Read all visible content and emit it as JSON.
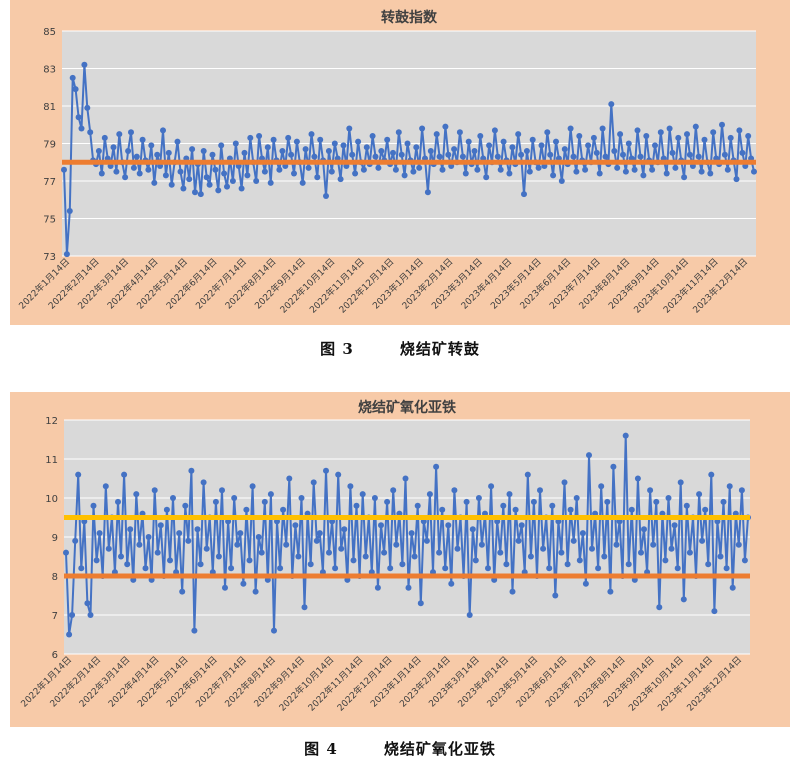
{
  "chart_data": [
    {
      "type": "line",
      "title": "转鼓指数",
      "xlabel": "",
      "ylabel": "",
      "ylim": [
        73,
        85
      ],
      "yticks": [
        73,
        75,
        77,
        79,
        81,
        83,
        85
      ],
      "xtick_labels": [
        "2022年1月14日",
        "2022年2月14日",
        "2022年3月14日",
        "2022年4月14日",
        "2022年5月14日",
        "2022年6月14日",
        "2022年7月14日",
        "2022年8月14日",
        "2022年9月14日",
        "2022年10月14日",
        "2022年11月14日",
        "2022年12月14日",
        "2023年1月14日",
        "2023年2月14日",
        "2023年3月14日",
        "2023年4月14日",
        "2023年5月14日",
        "2023年6月14日",
        "2023年7月14日",
        "2023年8月14日",
        "2023年9月14日",
        "2023年10月14日",
        "2023年11月14日",
        "2023年12月14日"
      ],
      "series_color": "#4472c4",
      "reference_lines": [
        {
          "value": 78.0,
          "color": "#ed7d31"
        }
      ],
      "series": [
        {
          "values": [
            77.6,
            73.1,
            75.4,
            82.5,
            81.9,
            80.4,
            79.8,
            83.2,
            80.9,
            79.6,
            78.1,
            77.9,
            78.6,
            77.4,
            79.3,
            78.2,
            77.8,
            78.8,
            77.5,
            79.5,
            78.0,
            77.2,
            78.6,
            79.6,
            77.7,
            78.3,
            77.4,
            79.2,
            78.1,
            77.6,
            78.9,
            76.9,
            78.4,
            77.8,
            79.7,
            77.3,
            78.5,
            76.8,
            78.0,
            79.1,
            77.5,
            76.6,
            78.2,
            77.1,
            78.7,
            76.4,
            77.9,
            76.3,
            78.6,
            77.2,
            76.8,
            78.4,
            77.6,
            76.5,
            78.9,
            77.4,
            76.7,
            78.2,
            77.0,
            79.0,
            77.8,
            76.6,
            78.5,
            77.3,
            79.3,
            78.0,
            77.0,
            79.4,
            78.2,
            77.5,
            78.8,
            76.9,
            79.2,
            78.1,
            77.6,
            78.6,
            77.8,
            79.3,
            78.4,
            77.4,
            79.1,
            78.0,
            76.9,
            78.7,
            77.7,
            79.5,
            78.3,
            77.2,
            79.2,
            78.1,
            76.2,
            78.6,
            77.5,
            79.0,
            78.2,
            77.1,
            78.9,
            77.8,
            79.8,
            78.4,
            77.4,
            79.1,
            78.0,
            77.6,
            78.8,
            77.9,
            79.4,
            78.3,
            77.7,
            78.6,
            78.1,
            79.2,
            77.9,
            78.5,
            77.6,
            79.6,
            78.4,
            77.3,
            79.0,
            78.1,
            77.5,
            78.8,
            77.7,
            79.8,
            78.2,
            76.4,
            78.6,
            77.9,
            79.5,
            78.3,
            77.6,
            79.9,
            78.4,
            77.8,
            78.7,
            78.0,
            79.6,
            78.3,
            77.4,
            79.1,
            77.9,
            78.6,
            77.6,
            79.4,
            78.2,
            77.2,
            78.9,
            78.0,
            79.7,
            78.3,
            77.6,
            79.1,
            78.1,
            77.4,
            78.8,
            77.9,
            79.5,
            78.4,
            76.3,
            78.6,
            77.5,
            79.2,
            78.0,
            77.7,
            78.9,
            77.8,
            79.6,
            78.4,
            77.3,
            79.1,
            78.2,
            77.0,
            78.7,
            77.9,
            79.8,
            78.3,
            77.5,
            79.4,
            78.1,
            77.6,
            78.9,
            78.0,
            79.3,
            78.5,
            77.4,
            79.8,
            78.3,
            77.9,
            81.1,
            78.6,
            77.7,
            79.5,
            78.4,
            77.5,
            79.0,
            78.2,
            77.6,
            79.7,
            78.3,
            77.3,
            79.4,
            78.1,
            77.6,
            78.9,
            78.0,
            79.6,
            78.2,
            77.4,
            79.8,
            78.5,
            77.7,
            79.3,
            78.1,
            77.2,
            79.5,
            78.4,
            77.8,
            79.9,
            78.3,
            77.5,
            79.2,
            78.0,
            77.4,
            79.6,
            78.2,
            77.9,
            80.0,
            78.4,
            77.6,
            79.3,
            78.1,
            77.1,
            79.7,
            78.5,
            77.8,
            79.4,
            78.2,
            77.5
          ]
        }
      ]
    },
    {
      "type": "line",
      "title": "烧结矿氧化亚铁",
      "xlabel": "",
      "ylabel": "",
      "ylim": [
        6,
        12
      ],
      "yticks": [
        6,
        7,
        8,
        9,
        10,
        11,
        12
      ],
      "xtick_labels": [
        "2022年1月14日",
        "2022年2月14日",
        "2022年3月14日",
        "2022年4月14日",
        "2022年5月14日",
        "2022年6月14日",
        "2022年7月14日",
        "2022年8月14日",
        "2022年9月14日",
        "2022年10月14日",
        "2022年11月14日",
        "2022年12月14日",
        "2023年1月14日",
        "2023年2月14日",
        "2023年3月14日",
        "2023年4月14日",
        "2023年5月14日",
        "2023年6月14日",
        "2023年7月14日",
        "2023年8月14日",
        "2023年9月14日",
        "2023年10月14日",
        "2023年11月14日",
        "2023年12月14日"
      ],
      "series_color": "#4472c4",
      "reference_lines": [
        {
          "value": 9.5,
          "color": "#ffc000"
        },
        {
          "value": 8.0,
          "color": "#ed7d31"
        }
      ],
      "series": [
        {
          "values": [
            8.6,
            6.5,
            7.0,
            8.9,
            10.6,
            8.2,
            9.4,
            7.3,
            7.0,
            9.8,
            8.4,
            9.1,
            8.0,
            10.3,
            8.7,
            9.5,
            8.1,
            9.9,
            8.5,
            10.6,
            8.3,
            9.2,
            7.9,
            10.1,
            8.8,
            9.6,
            8.2,
            9.0,
            7.9,
            10.2,
            8.6,
            9.3,
            8.0,
            9.7,
            8.4,
            10.0,
            8.1,
            9.1,
            7.6,
            9.8,
            8.9,
            10.7,
            6.6,
            9.2,
            8.3,
            10.4,
            8.7,
            9.5,
            8.1,
            9.9,
            8.5,
            10.2,
            7.7,
            9.4,
            8.2,
            10.0,
            8.8,
            9.1,
            7.8,
            9.7,
            8.4,
            10.3,
            7.6,
            9.0,
            8.6,
            9.9,
            7.9,
            10.1,
            6.6,
            9.4,
            8.2,
            9.7,
            8.8,
            10.5,
            8.0,
            9.3,
            8.5,
            10.0,
            7.2,
            9.6,
            8.3,
            10.4,
            8.9,
            9.1,
            8.1,
            10.7,
            8.6,
            9.4,
            8.2,
            10.6,
            8.7,
            9.2,
            7.9,
            10.3,
            8.4,
            9.8,
            8.0,
            10.1,
            8.5,
            9.5,
            8.1,
            10.0,
            7.7,
            9.3,
            8.6,
            9.9,
            8.2,
            10.2,
            8.8,
            9.6,
            8.3,
            10.5,
            7.7,
            9.1,
            8.5,
            9.8,
            7.3,
            9.4,
            8.9,
            10.1,
            8.1,
            10.8,
            8.6,
            9.7,
            8.2,
            9.3,
            7.8,
            10.2,
            8.7,
            9.5,
            8.0,
            9.9,
            7.0,
            9.2,
            8.4,
            10.0,
            8.8,
            9.6,
            8.2,
            10.3,
            7.9,
            9.4,
            8.6,
            9.8,
            8.3,
            10.1,
            7.6,
            9.7,
            8.9,
            9.3,
            8.1,
            10.6,
            8.5,
            9.9,
            8.0,
            10.2,
            8.7,
            9.5,
            8.2,
            9.8,
            7.5,
            9.4,
            8.6,
            10.4,
            8.3,
            9.7,
            8.9,
            10.0,
            8.4,
            9.1,
            7.8,
            11.1,
            8.7,
            9.6,
            8.2,
            10.3,
            8.5,
            9.9,
            7.6,
            10.8,
            8.8,
            9.4,
            8.0,
            11.6,
            8.3,
            9.7,
            7.9,
            10.5,
            8.6,
            9.2,
            8.1,
            10.2,
            8.8,
            9.9,
            7.2,
            9.6,
            8.4,
            10.0,
            8.7,
            9.3,
            8.2,
            10.4,
            7.4,
            9.8,
            8.6,
            9.5,
            8.0,
            10.1,
            8.9,
            9.7,
            8.3,
            10.6,
            7.1,
            9.4,
            8.5,
            9.9,
            8.2,
            10.3,
            7.7,
            9.6,
            8.8,
            10.2,
            8.4,
            9.5
          ]
        }
      ]
    }
  ],
  "captions": [
    {
      "number": "图 3",
      "text": "烧结矿转鼓"
    },
    {
      "number": "图 4",
      "text": "烧结矿氧化亚铁"
    }
  ]
}
